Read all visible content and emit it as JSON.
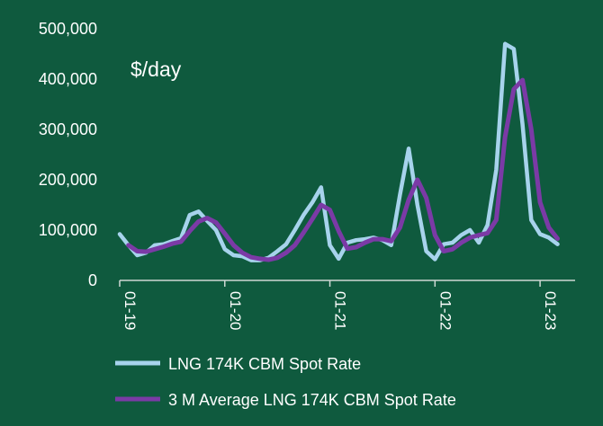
{
  "colors": {
    "background": "#0f5a3e",
    "axis": "#cfd8d4",
    "spot": "#a7d3ec",
    "avg": "#7b3aa6",
    "text": "#ffffff"
  },
  "chart_data": {
    "type": "line",
    "title": "",
    "unit_label": "$/day",
    "xlabel": "",
    "ylabel": "",
    "ylim": [
      0,
      500000
    ],
    "y_ticks": [
      0,
      100000,
      200000,
      300000,
      400000,
      500000
    ],
    "y_tick_labels": [
      "0",
      "100,000",
      "200,000",
      "300,000",
      "400,000",
      "500,000"
    ],
    "x_tick_labels": [
      "01-19",
      "01-20",
      "01-21",
      "01-22",
      "01-23"
    ],
    "x_tick_positions": [
      0,
      12,
      24,
      36,
      48
    ],
    "x_months": 52,
    "grid": false,
    "legend_position": "bottom-left",
    "series": [
      {
        "name": "LNG 174K CBM Spot Rate",
        "color_key": "spot",
        "values": [
          92000,
          70000,
          50000,
          55000,
          70000,
          72000,
          78000,
          84000,
          130000,
          137000,
          118000,
          100000,
          62000,
          50000,
          48000,
          40000,
          40000,
          45000,
          58000,
          72000,
          100000,
          130000,
          155000,
          185000,
          70000,
          43000,
          75000,
          80000,
          82000,
          85000,
          80000,
          70000,
          170000,
          262000,
          150000,
          58000,
          42000,
          72000,
          75000,
          90000,
          100000,
          75000,
          110000,
          220000,
          470000,
          460000,
          310000,
          120000,
          92000,
          85000,
          72000
        ]
      },
      {
        "name": "3 M Average LNG 174K CBM Spot Rate",
        "color_key": "avg",
        "start_index": 1,
        "values": [
          70000,
          58000,
          57000,
          62000,
          67000,
          73000,
          77000,
          98000,
          117000,
          124000,
          115000,
          93000,
          70000,
          55000,
          46000,
          43000,
          41000,
          45000,
          55000,
          70000,
          95000,
          122000,
          150000,
          140000,
          98000,
          63000,
          66000,
          75000,
          82000,
          82000,
          78000,
          105000,
          160000,
          200000,
          164000,
          90000,
          58000,
          62000,
          75000,
          85000,
          90000,
          94000,
          120000,
          285000,
          380000,
          398000,
          300000,
          155000,
          105000,
          83000
        ]
      }
    ]
  }
}
